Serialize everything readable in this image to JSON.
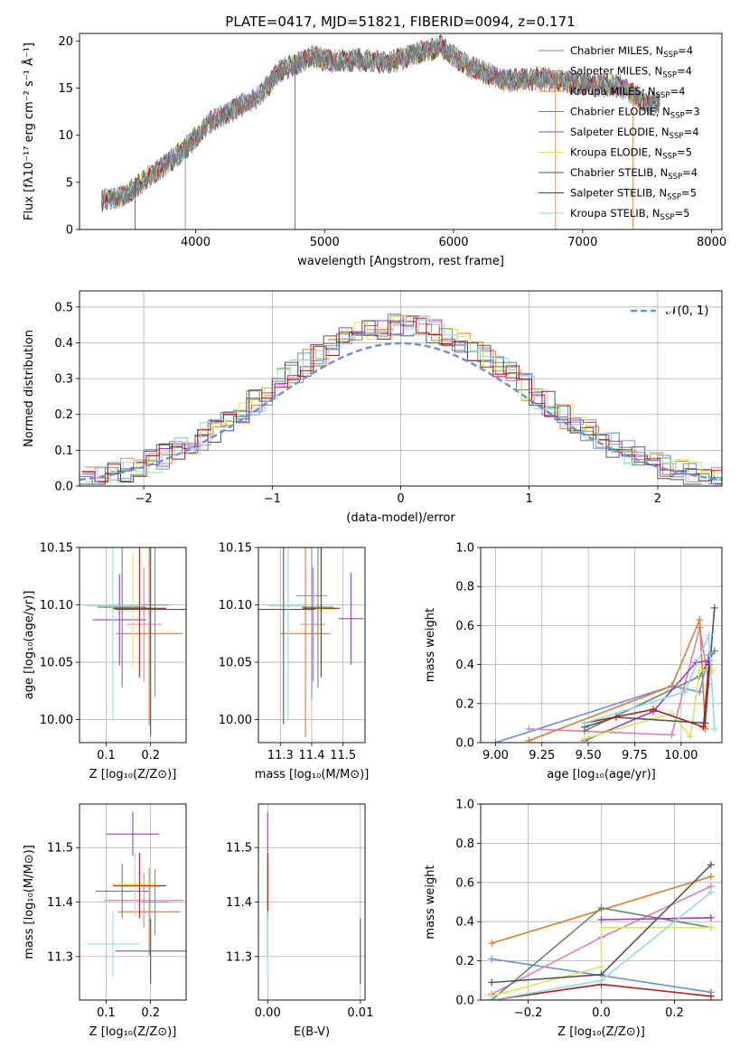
{
  "figure_title": "PLATE=0417, MJD=51821, FIBERID=0094, z=0.171",
  "colors": {
    "chabrier_miles": "#6a8fd8",
    "salpeter_miles": "#e07cb8",
    "kroupa_miles": "#e07b2a",
    "chabrier_elodie": "#5f8f65",
    "salpeter_elodie": "#9b3fbf",
    "kroupa_elodie": "#d2ea5a",
    "chabrier_stelib": "#555555",
    "salpeter_stelib": "#b11a1a",
    "kroupa_stelib": "#8fdce0",
    "data_spectrum": "#808080",
    "normal_curve": "#6a8fd8",
    "grid": "#b0b0b0"
  },
  "legend": [
    {
      "key": "chabrier_miles",
      "label": "Chabrier MILES, N",
      "sub": "SSP",
      "suffix": "=4"
    },
    {
      "key": "salpeter_miles",
      "label": "Salpeter MILES, N",
      "sub": "SSP",
      "suffix": "=4"
    },
    {
      "key": "kroupa_miles",
      "label": "Kroupa MILES, N",
      "sub": "SSP",
      "suffix": "=4"
    },
    {
      "key": "chabrier_elodie",
      "label": "Chabrier ELODIE, N",
      "sub": "SSP",
      "suffix": "=3"
    },
    {
      "key": "salpeter_elodie",
      "label": "Salpeter ELODIE, N",
      "sub": "SSP",
      "suffix": "=4"
    },
    {
      "key": "kroupa_elodie",
      "label": "Kroupa ELODIE, N",
      "sub": "SSP",
      "suffix": "=5"
    },
    {
      "key": "chabrier_stelib",
      "label": "Chabrier STELIB, N",
      "sub": "SSP",
      "suffix": "=4"
    },
    {
      "key": "salpeter_stelib",
      "label": "Salpeter STELIB, N",
      "sub": "SSP",
      "suffix": "=5"
    },
    {
      "key": "kroupa_stelib",
      "label": "Kroupa STELIB, N",
      "sub": "SSP",
      "suffix": "=5"
    }
  ],
  "chart_data": [
    {
      "id": "spectrum",
      "type": "line",
      "xlabel": "wavelength [Angstrom, rest frame]",
      "ylabel": "Flux [fλ10⁻¹⁷ erg cm⁻² s⁻¹ Å⁻¹]",
      "xlim": [
        3100,
        8080
      ],
      "ylim": [
        0,
        20.8
      ],
      "xticks": [
        4000,
        5000,
        6000,
        7000,
        8000
      ],
      "yticks": [
        0,
        5,
        10,
        15,
        20
      ],
      "grid": false,
      "legend_position": "top-right",
      "continuum_x": [
        3270,
        3450,
        3550,
        3700,
        3850,
        3950,
        4100,
        4300,
        4500,
        4650,
        4800,
        4900,
        5050,
        5250,
        5500,
        5750,
        5900,
        6100,
        6400,
        6700,
        7000,
        7300,
        7500,
        7600
      ],
      "continuum_y": [
        3.0,
        3.7,
        4.6,
        6.3,
        7.7,
        9.0,
        11.3,
        12.8,
        14.2,
        16.8,
        17.7,
        18.4,
        17.8,
        18.0,
        17.7,
        18.8,
        19.4,
        17.4,
        15.8,
        16.0,
        15.4,
        15.2,
        13.4,
        13.5
      ]
    },
    {
      "id": "residuals",
      "type": "step",
      "xlabel": "(data-model)/error",
      "ylabel": "Normed distribution",
      "xlim": [
        -2.5,
        2.5
      ],
      "ylim": [
        0,
        0.545
      ],
      "xticks": [
        -2,
        -1,
        0,
        1,
        2
      ],
      "yticks": [
        0.0,
        0.1,
        0.2,
        0.3,
        0.4,
        0.5
      ],
      "grid": true,
      "legend_position": "top-right",
      "legend_label": "𝒩(0, 1)",
      "bin_width": 0.1
    },
    {
      "id": "age_vs_z",
      "type": "scatter",
      "xlabel": "Z [log₁₀(Z/Z⊙)]",
      "ylabel": "age  [log₁₀(age/yr)]",
      "xlim": [
        0.04,
        0.28
      ],
      "ylim": [
        9.98,
        10.15
      ],
      "xticks": [
        0.1,
        0.2
      ],
      "yticks": [
        10.0,
        10.05,
        10.1,
        10.15
      ],
      "grid": true,
      "points": [
        {
          "key": "chabrier_miles",
          "x": 0.21,
          "xerr": 0.03,
          "y": 10.1,
          "yerr": 0.08
        },
        {
          "key": "salpeter_miles",
          "x": 0.185,
          "xerr": 0.04,
          "y": 10.083,
          "yerr": 0.05
        },
        {
          "key": "kroupa_miles",
          "x": 0.197,
          "xerr": 0.075,
          "y": 10.075,
          "yerr": 0.08
        },
        {
          "key": "chabrier_elodie",
          "x": 0.136,
          "xerr": 0.055,
          "y": 10.098,
          "yerr": 0.07
        },
        {
          "key": "salpeter_elodie",
          "x": 0.13,
          "xerr": 0.06,
          "y": 10.087,
          "yerr": 0.04
        },
        {
          "key": "kroupa_elodie",
          "x": 0.16,
          "xerr": 0.05,
          "y": 10.096,
          "yerr": 0.05
        },
        {
          "key": "chabrier_stelib",
          "x": 0.2,
          "xerr": 0.08,
          "y": 10.096,
          "yerr": 0.11
        },
        {
          "key": "salpeter_stelib",
          "x": 0.175,
          "xerr": 0.06,
          "y": 10.097,
          "yerr": 0.06
        },
        {
          "key": "kroupa_stelib",
          "x": 0.115,
          "xerr": 0.06,
          "y": 10.099,
          "yerr": 0.1
        }
      ]
    },
    {
      "id": "age_vs_mass",
      "type": "scatter",
      "xlabel": "mass [log₁₀(M/M⊙)]",
      "ylabel": "",
      "xlim": [
        11.23,
        11.57
      ],
      "ylim": [
        9.98,
        10.15
      ],
      "xticks": [
        11.3,
        11.4,
        11.5
      ],
      "yticks": [
        10.0,
        10.05,
        10.1,
        10.15
      ],
      "grid": true,
      "points": [
        {
          "key": "chabrier_miles",
          "x": 11.4,
          "xerr": 0.05,
          "y": 10.108,
          "yerr": 0.09
        },
        {
          "key": "salpeter_miles",
          "x": 11.404,
          "xerr": 0.04,
          "y": 10.083,
          "yerr": 0.05
        },
        {
          "key": "kroupa_miles",
          "x": 11.38,
          "xerr": 0.08,
          "y": 10.075,
          "yerr": 0.09
        },
        {
          "key": "chabrier_elodie",
          "x": 11.42,
          "xerr": 0.05,
          "y": 10.098,
          "yerr": 0.07
        },
        {
          "key": "salpeter_elodie",
          "x": 11.525,
          "xerr": 0.04,
          "y": 10.088,
          "yerr": 0.04
        },
        {
          "key": "kroupa_elodie",
          "x": 11.43,
          "xerr": 0.05,
          "y": 10.096,
          "yerr": 0.05
        },
        {
          "key": "chabrier_stelib",
          "x": 11.31,
          "xerr": 0.1,
          "y": 10.096,
          "yerr": 0.1
        },
        {
          "key": "salpeter_stelib",
          "x": 11.43,
          "xerr": 0.06,
          "y": 10.097,
          "yerr": 0.06
        },
        {
          "key": "kroupa_stelib",
          "x": 11.325,
          "xerr": 0.06,
          "y": 10.099,
          "yerr": 0.1
        }
      ]
    },
    {
      "id": "weight_vs_age",
      "type": "line",
      "xlabel": "age  [log₁₀(age/yr)]",
      "ylabel": "mass weight",
      "xlim": [
        8.92,
        10.22
      ],
      "ylim": [
        0,
        1.0
      ],
      "xticks": [
        9.0,
        9.25,
        9.5,
        9.75,
        10.0
      ],
      "yticks": [
        0.0,
        0.2,
        0.4,
        0.6,
        0.8,
        1.0
      ],
      "grid": true,
      "series": [
        {
          "key": "chabrier_miles",
          "x": [
            9.0,
            9.95,
            10.1,
            10.15
          ],
          "y": [
            0.0,
            0.29,
            0.26,
            0.45
          ]
        },
        {
          "key": "salpeter_miles",
          "x": [
            9.18,
            9.95,
            10.1,
            10.15
          ],
          "y": [
            0.07,
            0.04,
            0.59,
            0.3
          ]
        },
        {
          "key": "kroupa_miles",
          "x": [
            9.18,
            9.95,
            10.1,
            10.13
          ],
          "y": [
            0.01,
            0.29,
            0.63,
            0.07
          ]
        },
        {
          "key": "chabrier_elodie",
          "x": [
            9.48,
            10.1,
            10.18
          ],
          "y": [
            0.06,
            0.34,
            0.47
          ]
        },
        {
          "key": "salpeter_elodie",
          "x": [
            9.48,
            9.85,
            10.08,
            10.15
          ],
          "y": [
            0.01,
            0.16,
            0.41,
            0.42
          ]
        },
        {
          "key": "kroupa_elodie",
          "x": [
            9.48,
            9.95,
            10.05,
            10.1,
            10.17
          ],
          "y": [
            0.02,
            0.15,
            0.03,
            0.37,
            0.37
          ]
        },
        {
          "key": "chabrier_stelib",
          "x": [
            9.48,
            9.65,
            10.13,
            10.18
          ],
          "y": [
            0.08,
            0.13,
            0.1,
            0.69
          ]
        },
        {
          "key": "salpeter_stelib",
          "x": [
            9.48,
            9.85,
            10.12,
            10.15
          ],
          "y": [
            0.1,
            0.17,
            0.08,
            0.4
          ]
        },
        {
          "key": "kroupa_stelib",
          "x": [
            9.48,
            10.02,
            10.15,
            10.18
          ],
          "y": [
            0.1,
            0.26,
            0.55,
            0.07
          ]
        }
      ]
    },
    {
      "id": "mass_vs_z",
      "type": "scatter",
      "xlabel": "Z [log₁₀(Z/Z⊙)]",
      "ylabel": "mass [log₁₀(M/M⊙)]",
      "xlim": [
        0.04,
        0.28
      ],
      "ylim": [
        11.22,
        11.58
      ],
      "xticks": [
        0.1,
        0.2
      ],
      "yticks": [
        11.3,
        11.4,
        11.5
      ],
      "grid": true,
      "points": [
        {
          "key": "chabrier_miles",
          "x": 0.21,
          "xerr": 0.03,
          "y": 11.4,
          "yerr": 0.06
        },
        {
          "key": "salpeter_miles",
          "x": 0.185,
          "xerr": 0.09,
          "y": 11.403,
          "yerr": 0.05
        },
        {
          "key": "kroupa_miles",
          "x": 0.197,
          "xerr": 0.07,
          "y": 11.382,
          "yerr": 0.08
        },
        {
          "key": "chabrier_elodie",
          "x": 0.136,
          "xerr": 0.06,
          "y": 11.42,
          "yerr": 0.05
        },
        {
          "key": "salpeter_elodie",
          "x": 0.16,
          "xerr": 0.06,
          "y": 11.525,
          "yerr": 0.04
        },
        {
          "key": "kroupa_elodie",
          "x": 0.165,
          "xerr": 0.05,
          "y": 11.433,
          "yerr": 0.06
        },
        {
          "key": "chabrier_stelib",
          "x": 0.2,
          "xerr": 0.08,
          "y": 11.31,
          "yerr": 0.06
        },
        {
          "key": "salpeter_stelib",
          "x": 0.175,
          "xerr": 0.06,
          "y": 11.43,
          "yerr": 0.06
        },
        {
          "key": "kroupa_stelib",
          "x": 0.115,
          "xerr": 0.06,
          "y": 11.323,
          "yerr": 0.06
        }
      ]
    },
    {
      "id": "mass_vs_ebv",
      "type": "scatter",
      "xlabel": "E(B-V)",
      "ylabel": "",
      "xlim": [
        -0.001,
        0.0105
      ],
      "ylim": [
        11.22,
        11.58
      ],
      "xticks": [
        0.0,
        0.01
      ],
      "yticks": [
        11.3,
        11.4,
        11.5
      ],
      "grid": true,
      "points": [
        {
          "key": "chabrier_miles",
          "x": 0.0,
          "xerr": 0,
          "y": 11.4,
          "yerr": 0.05
        },
        {
          "key": "salpeter_miles",
          "x": 0.0,
          "xerr": 0,
          "y": 11.403,
          "yerr": 0.04
        },
        {
          "key": "kroupa_miles",
          "x": 0.0,
          "xerr": 0,
          "y": 11.382,
          "yerr": 0.08
        },
        {
          "key": "chabrier_elodie",
          "x": 0.0,
          "xerr": 0,
          "y": 11.42,
          "yerr": 0.05
        },
        {
          "key": "salpeter_elodie",
          "x": 0.0,
          "xerr": 0,
          "y": 11.525,
          "yerr": 0.04
        },
        {
          "key": "kroupa_elodie",
          "x": 0.0,
          "xerr": 0,
          "y": 11.433,
          "yerr": 0.06
        },
        {
          "key": "chabrier_stelib",
          "x": 0.01,
          "xerr": 0,
          "y": 11.31,
          "yerr": 0.06
        },
        {
          "key": "salpeter_stelib",
          "x": 0.0,
          "xerr": 0,
          "y": 11.43,
          "yerr": 0.06
        },
        {
          "key": "kroupa_stelib",
          "x": 0.0,
          "xerr": 0,
          "y": 11.323,
          "yerr": 0.06
        }
      ]
    },
    {
      "id": "weight_vs_z",
      "type": "line",
      "xlabel": "Z [log₁₀(Z/Z⊙)]",
      "ylabel": "mass weight",
      "xlim": [
        -0.33,
        0.33
      ],
      "ylim": [
        0,
        1.0
      ],
      "xticks": [
        -0.2,
        0.0,
        0.2
      ],
      "yticks": [
        0.0,
        0.2,
        0.4,
        0.6,
        0.8,
        1.0
      ],
      "grid": true,
      "series": [
        {
          "key": "chabrier_miles",
          "x": [
            -0.3,
            0.3
          ],
          "y": [
            0.21,
            0.04
          ]
        },
        {
          "key": "salpeter_miles",
          "x": [
            -0.3,
            0.0,
            0.3
          ],
          "y": [
            0.03,
            0.32,
            0.58
          ]
        },
        {
          "key": "kroupa_miles",
          "x": [
            -0.3,
            0.3
          ],
          "y": [
            0.29,
            0.63
          ]
        },
        {
          "key": "chabrier_elodie",
          "x": [
            -0.3,
            0.0,
            0.3
          ],
          "y": [
            0.0,
            0.47,
            0.37
          ]
        },
        {
          "key": "salpeter_elodie",
          "x": [
            0.0,
            0.3
          ],
          "y": [
            0.41,
            0.42
          ]
        },
        {
          "key": "kroupa_elodie",
          "x": [
            -0.3,
            0.0,
            0.0,
            0.3
          ],
          "y": [
            0.02,
            0.17,
            0.37,
            0.37
          ]
        },
        {
          "key": "chabrier_stelib",
          "x": [
            -0.3,
            0.0,
            0.3
          ],
          "y": [
            0.09,
            0.13,
            0.69
          ]
        },
        {
          "key": "salpeter_stelib",
          "x": [
            -0.3,
            0.0,
            0.3
          ],
          "y": [
            0.0,
            0.08,
            0.02
          ]
        },
        {
          "key": "kroupa_stelib",
          "x": [
            -0.3,
            0.0,
            0.3
          ],
          "y": [
            0.0,
            0.1,
            0.55
          ]
        }
      ]
    }
  ]
}
